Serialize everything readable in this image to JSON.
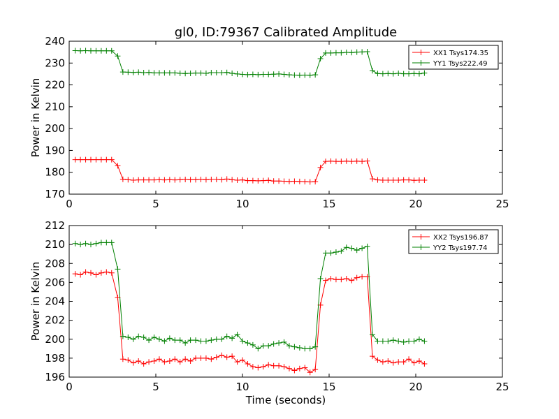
{
  "chart_data": [
    {
      "type": "line",
      "title": "gl0, ID:79367 Calibrated Amplitude",
      "xlabel": "",
      "ylabel": "Power in Kelvin",
      "xlim": [
        0,
        25
      ],
      "ylim": [
        170,
        240
      ],
      "xticks": [
        0,
        5,
        10,
        15,
        20,
        25
      ],
      "yticks": [
        170,
        180,
        190,
        200,
        210,
        220,
        230,
        240
      ],
      "legend_position": "top-right",
      "marker": "plus",
      "x": [
        0.35,
        0.65,
        0.95,
        1.25,
        1.55,
        1.85,
        2.15,
        2.45,
        2.8,
        3.1,
        3.4,
        3.7,
        4.0,
        4.3,
        4.6,
        4.9,
        5.2,
        5.5,
        5.8,
        6.1,
        6.4,
        6.7,
        7.0,
        7.3,
        7.6,
        7.9,
        8.2,
        8.5,
        8.8,
        9.1,
        9.4,
        9.7,
        10.0,
        10.3,
        10.6,
        10.9,
        11.2,
        11.5,
        11.8,
        12.1,
        12.4,
        12.7,
        13.0,
        13.3,
        13.6,
        13.9,
        14.2,
        14.5,
        14.8,
        15.1,
        15.4,
        15.7,
        16.0,
        16.3,
        16.6,
        16.9,
        17.2,
        17.5,
        17.8,
        18.1,
        18.4,
        18.7,
        19.0,
        19.3,
        19.6,
        19.9,
        20.2,
        20.5
      ],
      "series": [
        {
          "name": "XX1 Tsys174.35",
          "color": "#ff0000",
          "values": [
            185.8,
            185.8,
            185.8,
            185.8,
            185.8,
            185.8,
            185.8,
            185.8,
            183.0,
            176.8,
            176.6,
            176.4,
            176.5,
            176.5,
            176.5,
            176.5,
            176.6,
            176.5,
            176.6,
            176.5,
            176.6,
            176.7,
            176.6,
            176.6,
            176.7,
            176.6,
            176.7,
            176.7,
            176.6,
            176.9,
            176.6,
            176.4,
            176.5,
            176.2,
            176.2,
            176.1,
            176.2,
            176.3,
            176.0,
            176.0,
            175.9,
            175.8,
            175.9,
            175.8,
            175.7,
            175.6,
            175.7,
            182.2,
            185.0,
            185.1,
            185.0,
            185.0,
            185.1,
            185.0,
            185.1,
            185.0,
            185.2,
            177.0,
            176.5,
            176.4,
            176.4,
            176.4,
            176.4,
            176.5,
            176.5,
            176.3,
            176.4,
            176.4
          ]
        },
        {
          "name": "YY1 Tsys222.49",
          "color": "#008000",
          "values": [
            235.7,
            235.6,
            235.7,
            235.6,
            235.6,
            235.6,
            235.6,
            235.6,
            233.2,
            225.9,
            225.8,
            225.7,
            225.8,
            225.6,
            225.7,
            225.5,
            225.5,
            225.5,
            225.5,
            225.5,
            225.3,
            225.2,
            225.3,
            225.4,
            225.4,
            225.3,
            225.6,
            225.6,
            225.6,
            225.7,
            225.3,
            225.0,
            224.8,
            224.7,
            224.8,
            224.7,
            224.8,
            224.8,
            224.9,
            225.0,
            224.8,
            224.6,
            224.5,
            224.4,
            224.5,
            224.4,
            224.6,
            232.0,
            234.6,
            234.6,
            234.7,
            234.7,
            234.9,
            234.8,
            235.0,
            235.1,
            235.2,
            226.5,
            225.2,
            225.1,
            225.2,
            225.1,
            225.3,
            225.1,
            225.1,
            225.2,
            225.1,
            225.4
          ]
        }
      ]
    },
    {
      "type": "line",
      "title": "",
      "xlabel": "Time (seconds)",
      "ylabel": "Power in Kelvin",
      "xlim": [
        0,
        25
      ],
      "ylim": [
        196,
        212
      ],
      "xticks": [
        0,
        5,
        10,
        15,
        20,
        25
      ],
      "yticks": [
        196,
        198,
        200,
        202,
        204,
        206,
        208,
        210,
        212
      ],
      "legend_position": "top-right",
      "marker": "plus",
      "x": [
        0.35,
        0.65,
        0.95,
        1.25,
        1.55,
        1.85,
        2.15,
        2.45,
        2.8,
        3.1,
        3.4,
        3.7,
        4.0,
        4.3,
        4.6,
        4.9,
        5.2,
        5.5,
        5.8,
        6.1,
        6.4,
        6.7,
        7.0,
        7.3,
        7.6,
        7.9,
        8.2,
        8.5,
        8.8,
        9.1,
        9.4,
        9.7,
        10.0,
        10.3,
        10.6,
        10.9,
        11.2,
        11.5,
        11.8,
        12.1,
        12.4,
        12.7,
        13.0,
        13.3,
        13.6,
        13.9,
        14.2,
        14.5,
        14.8,
        15.1,
        15.4,
        15.7,
        16.0,
        16.3,
        16.6,
        16.9,
        17.2,
        17.5,
        17.8,
        18.1,
        18.4,
        18.7,
        19.0,
        19.3,
        19.6,
        19.9,
        20.2,
        20.5
      ],
      "series": [
        {
          "name": "XX2 Tsys196.87",
          "color": "#ff0000",
          "values": [
            206.9,
            206.8,
            207.1,
            207.0,
            206.8,
            207.0,
            207.1,
            207.0,
            204.4,
            197.9,
            197.8,
            197.5,
            197.7,
            197.4,
            197.6,
            197.7,
            197.9,
            197.6,
            197.7,
            197.9,
            197.6,
            197.9,
            197.7,
            198.0,
            198.0,
            198.0,
            197.9,
            198.1,
            198.3,
            198.1,
            198.2,
            197.6,
            197.8,
            197.4,
            197.1,
            197.0,
            197.1,
            197.3,
            197.2,
            197.2,
            197.1,
            196.9,
            196.7,
            196.9,
            197.0,
            196.5,
            196.8,
            203.6,
            206.2,
            206.4,
            206.3,
            206.3,
            206.4,
            206.2,
            206.5,
            206.6,
            206.6,
            198.2,
            197.8,
            197.6,
            197.7,
            197.5,
            197.6,
            197.6,
            197.9,
            197.5,
            197.7,
            197.4
          ]
        },
        {
          "name": "YY2 Tsys197.74",
          "color": "#008000",
          "values": [
            210.1,
            210.0,
            210.1,
            210.0,
            210.1,
            210.2,
            210.2,
            210.2,
            207.4,
            200.3,
            200.2,
            200.0,
            200.3,
            200.2,
            199.9,
            200.2,
            200.0,
            199.8,
            200.1,
            199.9,
            199.9,
            199.6,
            199.9,
            199.9,
            199.8,
            199.8,
            199.9,
            200.0,
            200.0,
            200.3,
            200.1,
            200.5,
            199.8,
            199.6,
            199.4,
            199.0,
            199.3,
            199.3,
            199.5,
            199.6,
            199.7,
            199.3,
            199.2,
            199.1,
            199.0,
            199.0,
            199.2,
            206.4,
            209.1,
            209.1,
            209.2,
            209.3,
            209.7,
            209.6,
            209.4,
            209.6,
            209.8,
            200.5,
            199.8,
            199.8,
            199.8,
            199.9,
            199.8,
            199.7,
            199.8,
            199.8,
            200.0,
            199.8
          ]
        }
      ]
    }
  ]
}
